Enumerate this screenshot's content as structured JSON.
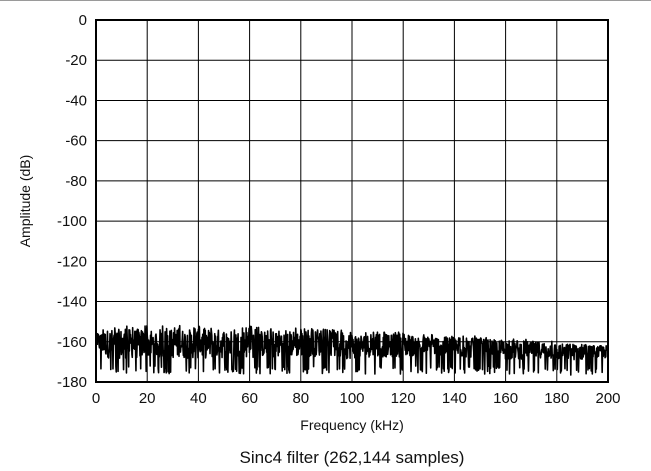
{
  "chart_data": {
    "type": "line",
    "title": "",
    "caption": "Sinc4 filter (262,144 samples)",
    "xlabel": "Frequency (kHz)",
    "ylabel": "Amplitude (dB)",
    "xlim": [
      0,
      200
    ],
    "ylim": [
      -180,
      0
    ],
    "x_ticks": [
      0,
      20,
      40,
      60,
      80,
      100,
      120,
      140,
      160,
      180,
      200
    ],
    "y_ticks": [
      0,
      -20,
      -40,
      -60,
      -80,
      -100,
      -120,
      -140,
      -160,
      -180
    ],
    "x_tick_labels": [
      "0",
      "20",
      "40",
      "60",
      "80",
      "100",
      "120",
      "140",
      "160",
      "180",
      "200"
    ],
    "y_tick_labels": [
      "0",
      "-20",
      "-40",
      "-60",
      "-80",
      "-100",
      "-120",
      "-140",
      "-160",
      "-180"
    ],
    "grid": true,
    "legend": "none",
    "series": [
      {
        "color": "#000000",
        "x": [
          0.5,
          5,
          10,
          15,
          20,
          25,
          30,
          35,
          40,
          45,
          50,
          55,
          60,
          65,
          70,
          75,
          80,
          85,
          90,
          95,
          100,
          105,
          110,
          115,
          120,
          125,
          130,
          135,
          140,
          145,
          150,
          155,
          160,
          165,
          170,
          175,
          180,
          185,
          190,
          195,
          200
        ],
        "y": [
          -160,
          -161,
          -161,
          -161,
          -161,
          -161,
          -161,
          -161,
          -161,
          -161,
          -161,
          -161,
          -161,
          -161,
          -161,
          -161,
          -161,
          -161,
          -161,
          -162,
          -162,
          -162,
          -162,
          -162,
          -162,
          -162,
          -162,
          -162,
          -163,
          -163,
          -163,
          -163,
          -164,
          -164,
          -164,
          -164,
          -165,
          -165,
          -165,
          -165,
          -165
        ],
        "upper_envelope": [
          -155,
          -152,
          -152,
          -152,
          -152,
          -152,
          -152,
          -152,
          -152,
          -152,
          -152,
          -153,
          -152,
          -153,
          -152,
          -153,
          -153,
          -153,
          -154,
          -154,
          -154,
          -155,
          -155,
          -155,
          -155,
          -156,
          -156,
          -156,
          -157,
          -157,
          -157,
          -158,
          -158,
          -158,
          -159,
          -159,
          -160,
          -160,
          -160,
          -161,
          -161
        ],
        "lower_envelope": [
          -175,
          -176,
          -176,
          -176,
          -176,
          -176,
          -176,
          -176,
          -176,
          -176,
          -176,
          -176,
          -176,
          -176,
          -176,
          -176,
          -176,
          -176,
          -176,
          -176,
          -176,
          -176,
          -176,
          -176,
          -176,
          -176,
          -176,
          -176,
          -176,
          -176,
          -176,
          -176,
          -176,
          -176,
          -177,
          -177,
          -177,
          -177,
          -177,
          -177,
          -177
        ]
      }
    ]
  }
}
